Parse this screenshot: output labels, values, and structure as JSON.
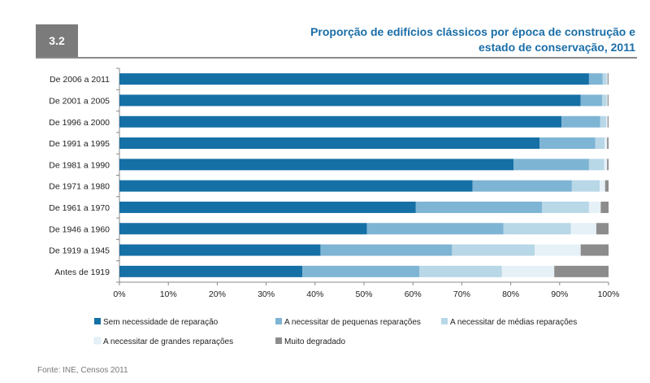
{
  "badge": "3.2",
  "source": "Fonte: INE, Censos 2011",
  "chart_data": {
    "type": "bar",
    "orientation": "horizontal",
    "stacked": true,
    "title_line1": "Proporção de edifícios clássicos por época de construção e",
    "title_line2": "estado de conservação, 2011",
    "categories": [
      "De 2006 a 2011",
      "De 2001 a 2005",
      "De 1996 a 2000",
      "De 1991 a 1995",
      "De 1981 a 1990",
      "De 1971 a 1980",
      "De 1961 a 1970",
      "De 1946 a 1960",
      "De 1919 a 1945",
      "Antes de 1919"
    ],
    "series": [
      {
        "name": "Sem necessidade de reparação",
        "color": "#1570a6",
        "values": [
          96.0,
          94.3,
          90.4,
          85.9,
          80.6,
          72.2,
          60.6,
          50.6,
          41.1,
          37.4
        ]
      },
      {
        "name": "A necessitar de pequenas reparações",
        "color": "#7eb4d4",
        "values": [
          2.8,
          4.4,
          7.9,
          11.4,
          15.4,
          20.3,
          25.8,
          27.9,
          26.9,
          23.9
        ]
      },
      {
        "name": "A necessitar de médias reparações",
        "color": "#b8d7e7",
        "values": [
          0.8,
          0.9,
          1.2,
          1.9,
          3.1,
          5.7,
          9.6,
          13.8,
          16.9,
          16.9
        ]
      },
      {
        "name": "A necessitar de grandes reparações",
        "color": "#e6f1f7",
        "values": [
          0.2,
          0.2,
          0.3,
          0.5,
          0.6,
          1.1,
          2.4,
          5.2,
          9.4,
          10.7
        ]
      },
      {
        "name": "Muito degradado",
        "color": "#8c8c8c",
        "values": [
          0.2,
          0.2,
          0.2,
          0.3,
          0.3,
          0.7,
          1.6,
          2.5,
          5.7,
          11.1
        ]
      }
    ],
    "xlim": [
      0,
      100
    ],
    "xticks": [
      "0%",
      "10%",
      "20%",
      "30%",
      "40%",
      "50%",
      "60%",
      "70%",
      "80%",
      "90%",
      "100%"
    ]
  }
}
